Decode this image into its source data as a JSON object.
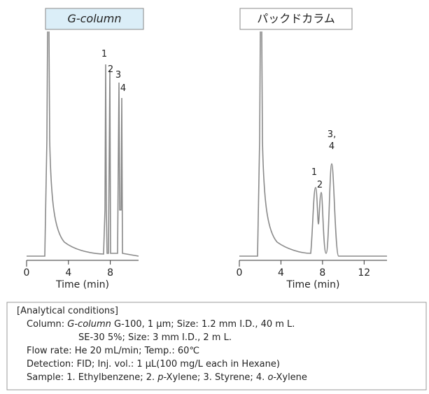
{
  "chart_data": [
    {
      "type": "chromatogram",
      "title": "G-column",
      "title_italic": true,
      "title_fill": "#dbeef8",
      "xlabel": "Time (min)",
      "xlim": [
        0,
        10.7
      ],
      "xticks": [
        0,
        4,
        8
      ],
      "peak_labels": [
        [
          "1"
        ],
        [
          "2"
        ],
        [
          "3"
        ],
        [
          "4"
        ]
      ]
    },
    {
      "type": "chromatogram",
      "title": "パックドカラム",
      "title_italic": false,
      "title_fill": "#ffffff",
      "xlabel": "Time (min)",
      "xlim": [
        0,
        14.2
      ],
      "xticks": [
        0,
        4,
        8,
        12
      ],
      "peak_labels": [
        [
          "1"
        ],
        [
          "2"
        ],
        [
          "3,",
          "4"
        ]
      ]
    }
  ],
  "conditions": [
    [
      {
        "text": "[Analytical  conditions]",
        "italic": false
      }
    ],
    [
      {
        "text": "Column: ",
        "italic": false
      },
      {
        "text": "G-column",
        "italic": true
      },
      {
        "text": " G-100, 1 µm; Size: 1.2 mm I.D., 40 m L.",
        "italic": false
      }
    ],
    [
      {
        "text": "SE-30 5%; Size: 3 mm I.D., 2 m L.",
        "italic": false
      }
    ],
    [
      {
        "text": "Flow rate: He 20 mL/min; Temp.: 60℃",
        "italic": false
      }
    ],
    [
      {
        "text": "Detection: FID; Inj. vol.: 1 µL(100 mg/L each in Hexane)",
        "italic": false
      }
    ],
    [
      {
        "text": "Sample: 1. Ethylbenzene; 2. ",
        "italic": false
      },
      {
        "text": "p",
        "italic": true
      },
      {
        "text": "-Xylene; 3. Styrene; 4. ",
        "italic": false
      },
      {
        "text": "o",
        "italic": true
      },
      {
        "text": "-Xylene",
        "italic": false
      }
    ]
  ]
}
